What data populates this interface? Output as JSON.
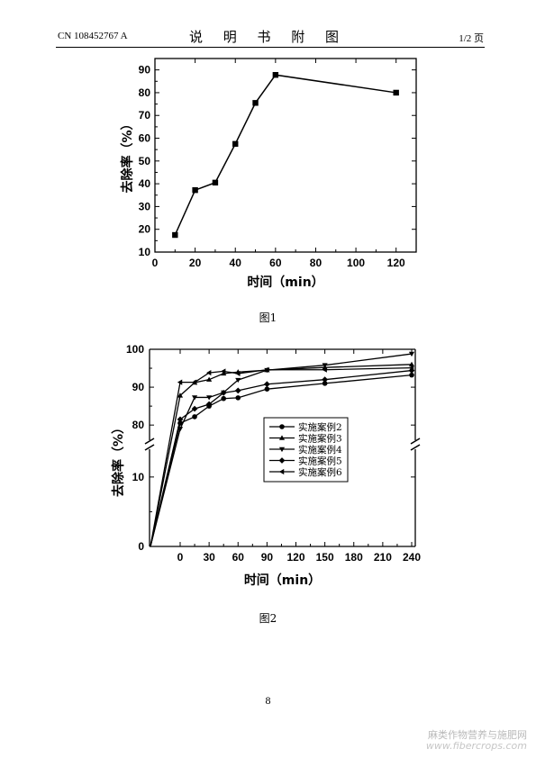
{
  "header": {
    "left": "CN 108452767 A",
    "center": "说 明 书 附 图",
    "right": "1/2 页"
  },
  "captions": {
    "fig1": "图1",
    "fig2": "图2"
  },
  "page_number": "8",
  "watermark": {
    "line1": "麻类作物营养与施肥网",
    "line2": "www.fibercrops.com"
  },
  "chart_data": [
    {
      "type": "line",
      "title": "",
      "xlabel": "时间（min）",
      "ylabel": "去除率（%）",
      "xlim": [
        0,
        130
      ],
      "ylim": [
        10,
        95
      ],
      "x_ticks": [
        0,
        20,
        40,
        60,
        80,
        100,
        120
      ],
      "y_ticks": [
        10,
        20,
        30,
        40,
        50,
        60,
        70,
        80,
        90
      ],
      "grid": false,
      "marker": "square",
      "series": [
        {
          "x": [
            10,
            20,
            30,
            40,
            50,
            60,
            120
          ],
          "values": [
            17.5,
            37.2,
            40.5,
            57.5,
            75.5,
            87.8,
            80.0
          ]
        }
      ]
    },
    {
      "type": "line",
      "title": "",
      "xlabel": "时间（min）",
      "ylabel": "去除率（%）",
      "x_ticks": [
        0,
        30,
        60,
        90,
        120,
        150,
        180,
        210,
        240
      ],
      "y_ticks_lower": [
        0,
        10
      ],
      "y_ticks_upper": [
        80,
        90,
        100
      ],
      "y_axis_break": true,
      "ylim_lower": [
        0,
        14
      ],
      "ylim_upper": [
        76,
        100
      ],
      "grid": false,
      "legend_position": "center",
      "series": [
        {
          "name": "实施案例2",
          "marker": "circle",
          "x": [
            -28,
            0,
            15,
            30,
            45,
            60,
            90,
            150,
            240
          ],
          "values": [
            0,
            80.5,
            82.2,
            85.0,
            87.0,
            87.2,
            89.5,
            91.0,
            93.2
          ]
        },
        {
          "name": "实施案例3",
          "marker": "triangle-up",
          "x": [
            -28,
            0,
            15,
            30,
            45,
            60,
            90,
            150,
            240
          ],
          "values": [
            0,
            87.8,
            91.2,
            92.0,
            93.6,
            94.0,
            94.5,
            95.2,
            96.0
          ]
        },
        {
          "name": "实施案例4",
          "marker": "triangle-down",
          "x": [
            -28,
            0,
            15,
            30,
            45,
            60,
            90,
            150,
            240
          ],
          "values": [
            0,
            79.0,
            87.3,
            87.3,
            88.6,
            91.9,
            94.5,
            95.8,
            98.8
          ]
        },
        {
          "name": "实施案例5",
          "marker": "diamond",
          "x": [
            -28,
            0,
            15,
            30,
            45,
            60,
            90,
            150,
            240
          ],
          "values": [
            0,
            81.5,
            84.3,
            85.5,
            88.5,
            89.1,
            90.8,
            92.0,
            94.4
          ]
        },
        {
          "name": "实施案例6",
          "marker": "triangle-left",
          "x": [
            -28,
            0,
            15,
            30,
            45,
            60,
            90,
            150,
            240
          ],
          "values": [
            0,
            91.3,
            91.3,
            93.8,
            94.2,
            93.6,
            94.6,
            94.6,
            95.1
          ]
        }
      ]
    }
  ]
}
